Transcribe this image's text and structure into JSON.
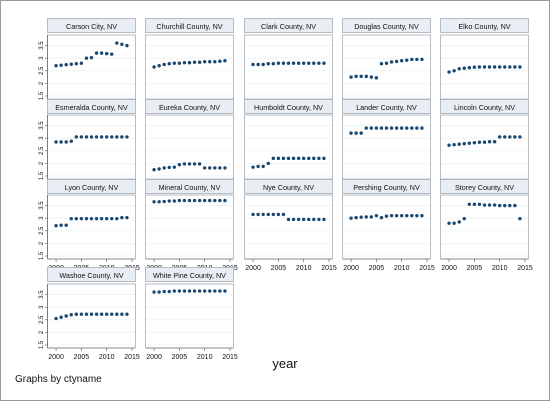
{
  "chart_data": {
    "type": "scatter",
    "xlabel": "year",
    "note": "Graphs by ctyname",
    "xlim": [
      1999,
      2015
    ],
    "ylim": [
      1.5,
      3.8
    ],
    "x_ticks": [
      2000,
      2005,
      2010,
      2015
    ],
    "y_ticks": [
      1.5,
      2,
      2.5,
      3,
      3.5
    ],
    "x": [
      2000,
      2001,
      2002,
      2003,
      2004,
      2005,
      2006,
      2007,
      2008,
      2009,
      2010,
      2011,
      2012,
      2013,
      2014
    ],
    "series": [
      {
        "name": "Carson City, NV",
        "values": [
          2.7,
          2.72,
          2.74,
          2.76,
          2.78,
          2.8,
          3.0,
          3.02,
          3.2,
          3.2,
          3.18,
          3.16,
          3.6,
          3.55,
          3.5
        ]
      },
      {
        "name": "Churchill County, NV",
        "values": [
          2.65,
          2.7,
          2.75,
          2.78,
          2.8,
          2.8,
          2.82,
          2.82,
          2.84,
          2.84,
          2.86,
          2.86,
          2.86,
          2.88,
          2.9
        ]
      },
      {
        "name": "Clark County, NV",
        "values": [
          2.75,
          2.75,
          2.75,
          2.78,
          2.78,
          2.8,
          2.8,
          2.8,
          2.8,
          2.8,
          2.8,
          2.8,
          2.8,
          2.8,
          2.8
        ]
      },
      {
        "name": "Douglas County, NV",
        "values": [
          2.25,
          2.28,
          2.28,
          2.28,
          2.25,
          2.22,
          2.78,
          2.8,
          2.85,
          2.87,
          2.9,
          2.92,
          2.95,
          2.95,
          2.95
        ]
      },
      {
        "name": "Elko County, NV",
        "values": [
          2.45,
          2.5,
          2.58,
          2.6,
          2.62,
          2.64,
          2.65,
          2.65,
          2.65,
          2.65,
          2.65,
          2.65,
          2.65,
          2.65,
          2.65
        ]
      },
      {
        "name": "Esmeralda County, NV",
        "values": [
          2.85,
          2.85,
          2.85,
          2.88,
          3.05,
          3.05,
          3.05,
          3.05,
          3.05,
          3.05,
          3.05,
          3.05,
          3.05,
          3.05,
          3.05
        ]
      },
      {
        "name": "Eureka County, NV",
        "values": [
          1.75,
          1.78,
          1.82,
          1.84,
          1.85,
          1.95,
          1.98,
          1.98,
          1.98,
          1.98,
          1.82,
          1.82,
          1.82,
          1.82,
          1.82
        ]
      },
      {
        "name": "Humboldt County, NV",
        "values": [
          1.85,
          1.88,
          1.88,
          2.0,
          2.2,
          2.2,
          2.2,
          2.2,
          2.2,
          2.2,
          2.2,
          2.2,
          2.2,
          2.2,
          2.2
        ]
      },
      {
        "name": "Lander County, NV",
        "values": [
          3.2,
          3.2,
          3.2,
          3.4,
          3.4,
          3.4,
          3.4,
          3.4,
          3.4,
          3.4,
          3.4,
          3.4,
          3.4,
          3.4,
          3.4
        ]
      },
      {
        "name": "Lincoln County, NV",
        "values": [
          2.72,
          2.74,
          2.76,
          2.78,
          2.8,
          2.82,
          2.84,
          2.84,
          2.86,
          2.86,
          3.05,
          3.05,
          3.05,
          3.05,
          3.05
        ]
      },
      {
        "name": "Lyon County, NV",
        "values": [
          2.7,
          2.72,
          2.72,
          2.98,
          2.98,
          2.98,
          2.98,
          2.98,
          2.98,
          2.98,
          2.98,
          2.98,
          2.98,
          3.02,
          3.02
        ]
      },
      {
        "name": "Mineral County, NV",
        "values": [
          3.65,
          3.65,
          3.66,
          3.68,
          3.68,
          3.7,
          3.7,
          3.7,
          3.7,
          3.7,
          3.7,
          3.7,
          3.7,
          3.7,
          3.7
        ]
      },
      {
        "name": "Nye County, NV",
        "values": [
          3.15,
          3.15,
          3.15,
          3.15,
          3.15,
          3.15,
          3.15,
          2.95,
          2.95,
          2.95,
          2.95,
          2.95,
          2.95,
          2.95,
          2.95
        ]
      },
      {
        "name": "Pershing County, NV",
        "values": [
          3.0,
          3.02,
          3.04,
          3.05,
          3.05,
          3.1,
          3.02,
          3.08,
          3.1,
          3.1,
          3.1,
          3.1,
          3.1,
          3.1,
          3.1
        ]
      },
      {
        "name": "Storey County, NV",
        "values": [
          2.8,
          2.8,
          2.85,
          2.98,
          3.55,
          3.55,
          3.55,
          3.52,
          3.52,
          3.52,
          3.5,
          3.5,
          3.5,
          3.5,
          2.98
        ]
      },
      {
        "name": "Washoe County, NV",
        "values": [
          2.55,
          2.6,
          2.65,
          2.7,
          2.72,
          2.72,
          2.72,
          2.72,
          2.72,
          2.72,
          2.72,
          2.72,
          2.72,
          2.72,
          2.72
        ]
      },
      {
        "name": "White Pine County, NV",
        "values": [
          3.6,
          3.6,
          3.62,
          3.62,
          3.64,
          3.64,
          3.64,
          3.64,
          3.64,
          3.64,
          3.64,
          3.64,
          3.64,
          3.64,
          3.64
        ]
      }
    ]
  },
  "colors": {
    "background": "#ffffff",
    "panel_header": "#e8eef4",
    "frame": "#a5adb5",
    "grid": "#eaf2f3",
    "marker": "#1a476f",
    "text": "#111111"
  }
}
